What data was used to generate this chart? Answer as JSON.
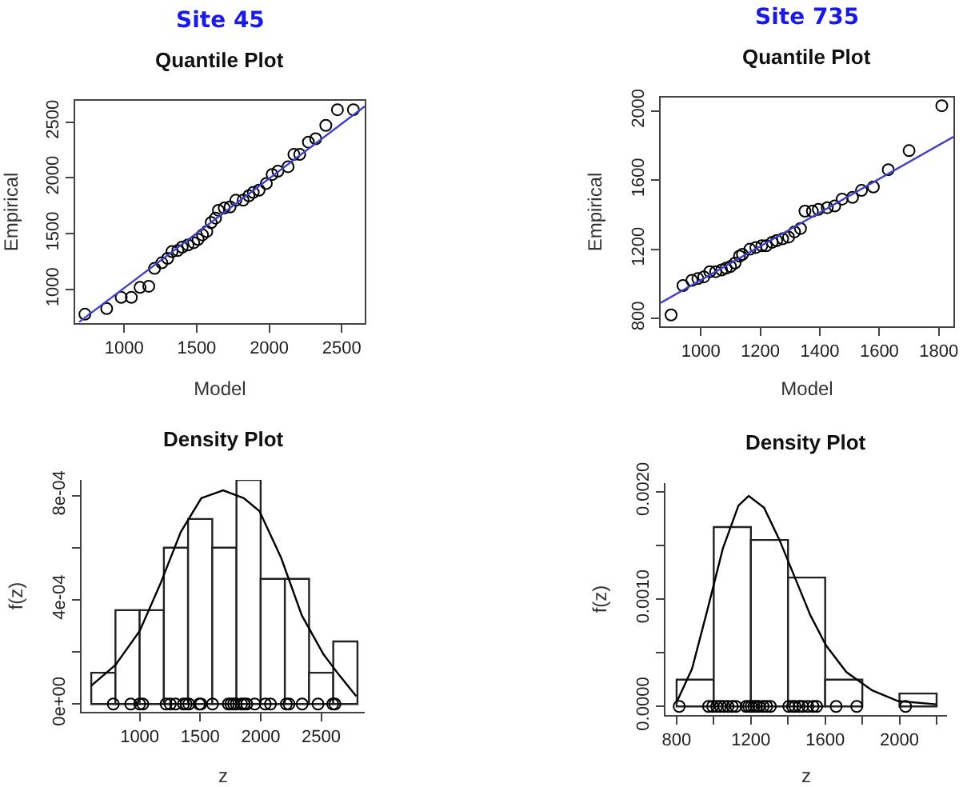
{
  "chart_data": [
    {
      "type": "scatter",
      "subtitle": "Site 45",
      "title": "Quantile Plot",
      "xlabel": "Model",
      "ylabel": "Empirical",
      "xlim": [
        663,
        2658
      ],
      "ylim": [
        700,
        2690
      ],
      "xticks": [
        1000,
        1500,
        2000,
        2500
      ],
      "yticks": [
        1000,
        1500,
        2000,
        2500
      ],
      "series": [
        {
          "type": "scatter",
          "marker": "circle",
          "color": "#000000",
          "x": [
            730,
            880,
            980,
            1050,
            1110,
            1170,
            1210,
            1260,
            1300,
            1330,
            1370,
            1400,
            1440,
            1480,
            1510,
            1540,
            1570,
            1600,
            1630,
            1650,
            1690,
            1730,
            1770,
            1820,
            1860,
            1890,
            1930,
            1980,
            2020,
            2060,
            2130,
            2170,
            2210,
            2270,
            2320,
            2390,
            2470,
            2580
          ],
          "values": [
            780,
            830,
            930,
            930,
            1020,
            1030,
            1190,
            1240,
            1280,
            1340,
            1350,
            1380,
            1400,
            1420,
            1450,
            1490,
            1520,
            1600,
            1640,
            1710,
            1730,
            1740,
            1800,
            1800,
            1840,
            1870,
            1890,
            1950,
            2030,
            2060,
            2100,
            2210,
            2210,
            2320,
            2350,
            2470,
            2610,
            2610
          ]
        },
        {
          "type": "line",
          "marker": "none",
          "color": "#4040c8",
          "x": [
            690,
            2658
          ],
          "values": [
            710,
            2640
          ]
        }
      ]
    },
    {
      "type": "scatter",
      "subtitle": "Site 735",
      "title": "Quantile Plot",
      "xlabel": "Model",
      "ylabel": "Empirical",
      "xlim": [
        865,
        1849
      ],
      "ylim": [
        754,
        2077
      ],
      "xticks": [
        1000,
        1200,
        1400,
        1600,
        1800
      ],
      "yticks": [
        800,
        1200,
        1600,
        2000
      ],
      "series": [
        {
          "type": "scatter",
          "marker": "circle",
          "color": "#000000",
          "x": [
            900,
            940,
            970,
            990,
            1010,
            1030,
            1050,
            1070,
            1085,
            1100,
            1115,
            1130,
            1140,
            1165,
            1185,
            1205,
            1220,
            1240,
            1255,
            1275,
            1295,
            1315,
            1335,
            1350,
            1375,
            1395,
            1425,
            1450,
            1475,
            1510,
            1540,
            1580,
            1630,
            1700,
            1810
          ],
          "values": [
            820,
            990,
            1020,
            1030,
            1040,
            1070,
            1070,
            1080,
            1090,
            1100,
            1120,
            1160,
            1170,
            1200,
            1210,
            1220,
            1220,
            1240,
            1250,
            1260,
            1270,
            1300,
            1320,
            1420,
            1420,
            1430,
            1440,
            1450,
            1490,
            1500,
            1540,
            1560,
            1660,
            1770,
            2030
          ]
        },
        {
          "type": "line",
          "marker": "none",
          "color": "#4040c8",
          "x": [
            865,
            1849
          ],
          "values": [
            890,
            1850
          ]
        }
      ]
    },
    {
      "type": "histogram",
      "title": "Density Plot",
      "xlabel": "z",
      "ylabel": "f(z)",
      "color": "#ffffff",
      "xlim": [
        520,
        2860
      ],
      "ylim": [
        -3e-05,
        0.00086
      ],
      "xticks": [
        1000,
        1500,
        2000,
        2500
      ],
      "yticks": [
        {
          "value": 0,
          "label": "0e+00"
        },
        {
          "value": 0.0002,
          "label": null
        },
        {
          "value": 0.0004,
          "label": "4e-04"
        },
        {
          "value": 0.0006,
          "label": null
        },
        {
          "value": 0.0008,
          "label": "8e-04"
        }
      ],
      "bins": [
        600,
        800,
        1000,
        1200,
        1400,
        1600,
        1800,
        2000,
        2200,
        2400,
        2600,
        2800
      ],
      "values": [
        0.00012,
        0.00036,
        0.00036,
        0.0006,
        0.00071,
        0.0006,
        0.00086,
        0.00048,
        0.00048,
        0.00012,
        0.00024
      ],
      "series": [
        {
          "type": "line",
          "marker": "none",
          "color": "#000000",
          "x": [
            600,
            800,
            1000,
            1170,
            1340,
            1510,
            1690,
            1860,
            1990,
            2170,
            2340,
            2520,
            2650,
            2790
          ],
          "values": [
            7e-05,
            0.00015,
            0.00028,
            0.00046,
            0.00066,
            0.00079,
            0.00082,
            0.00079,
            0.00074,
            0.00056,
            0.00034,
            0.00019,
            0.00011,
            3e-05
          ]
        },
        {
          "type": "scatter",
          "marker": "circle",
          "color": "#000000",
          "x": [
            782,
            926,
            1000,
            1026,
            1218,
            1253,
            1296,
            1362,
            1384,
            1406,
            1493,
            1506,
            1602,
            1733,
            1754,
            1776,
            1798,
            1842,
            1863,
            1885,
            1951,
            2038,
            2081,
            2212,
            2234,
            2343,
            2474,
            2596,
            2614
          ],
          "values": [
            0,
            0,
            0,
            0,
            0,
            0,
            0,
            0,
            0,
            0,
            0,
            0,
            0,
            0,
            0,
            0,
            0,
            0,
            0,
            0,
            0,
            0,
            0,
            0,
            0,
            0,
            0,
            0,
            0
          ]
        }
      ]
    },
    {
      "type": "histogram",
      "title": "Density Plot",
      "xlabel": "z",
      "ylabel": "f(z)",
      "color": "#ffffff",
      "xlim": [
        740,
        2256
      ],
      "ylim": [
        -8e-05,
        0.00208
      ],
      "xticks": [
        800,
        {
          "value": 1000,
          "label": null
        },
        1200,
        {
          "value": 1400,
          "label": null
        },
        1600,
        {
          "value": 1800,
          "label": null
        },
        2000,
        {
          "value": 2200,
          "label": null
        }
      ],
      "yticks": [
        {
          "value": 0,
          "label": "0.0000"
        },
        {
          "value": 0.0005,
          "label": null
        },
        {
          "value": 0.001,
          "label": "0.0010"
        },
        {
          "value": 0.0015,
          "label": null
        },
        {
          "value": 0.002,
          "label": "0.0020"
        }
      ],
      "bins": [
        800,
        1000,
        1200,
        1400,
        1600,
        1800,
        2000,
        2200
      ],
      "values": [
        0.00025,
        0.00167,
        0.00155,
        0.0012,
        0.00025,
        0,
        0.00012
      ],
      "series": [
        {
          "type": "line",
          "marker": "none",
          "color": "#000000",
          "x": [
            800,
            883,
            966,
            1049,
            1133,
            1188,
            1271,
            1354,
            1437,
            1520,
            1604,
            1714,
            1853,
            1992,
            2199
          ],
          "values": [
            4e-05,
            0.00035,
            0.0009,
            0.00147,
            0.00187,
            0.00196,
            0.00185,
            0.00155,
            0.0012,
            0.00085,
            0.00057,
            0.00032,
            0.00015,
            5e-05,
            2e-05
          ]
        },
        {
          "type": "scatter",
          "marker": "circle",
          "color": "#000000",
          "x": [
            814,
            972,
            994,
            1016,
            1036,
            1055,
            1077,
            1100,
            1119,
            1174,
            1188,
            1202,
            1216,
            1230,
            1244,
            1266,
            1285,
            1305,
            1404,
            1424,
            1438,
            1460,
            1479,
            1507,
            1535,
            1554,
            1659,
            1770,
            2033
          ],
          "values": [
            0,
            0,
            0,
            0,
            0,
            0,
            0,
            0,
            0,
            0,
            0,
            0,
            0,
            0,
            0,
            0,
            0,
            0,
            0,
            0,
            0,
            0,
            0,
            0,
            0,
            0,
            0,
            0,
            0
          ]
        }
      ]
    }
  ]
}
